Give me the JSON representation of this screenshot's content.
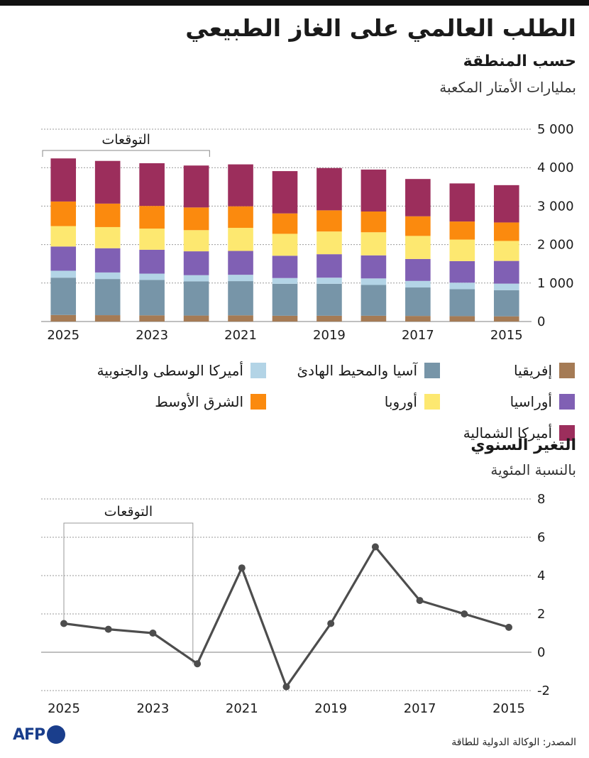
{
  "title": "الطلب العالمي على الغاز الطبيعي",
  "chart1": {
    "subtitle": "حسب المنطقة",
    "unit": "بمليارات الأمتار المكعبة",
    "forecast_label": "التوقعات"
  },
  "chart2": {
    "subtitle": "التغير السنوي",
    "unit": "بالنسبة المئوية",
    "forecast_label": "التوقعات"
  },
  "source": "المصدر: الوكالة الدولية للطاقة",
  "logo_text": "AFP",
  "colors": {
    "africa": "#a57b55",
    "asia_pacific": "#7795a8",
    "central_south_america": "#b3d4e6",
    "eurasia": "#8060b4",
    "europe": "#fde870",
    "middle_east": "#fb8a0e",
    "north_america": "#9c2e5c",
    "line": "#4d4d4d",
    "grid": "#999999"
  },
  "chart_data": [
    {
      "type": "bar",
      "stacked": true,
      "x": [
        2025,
        2024,
        2023,
        2022,
        2021,
        2020,
        2019,
        2018,
        2017,
        2016,
        2015
      ],
      "x_tick_labels": [
        "2025",
        "2023",
        "2021",
        "2019",
        "2017",
        "2015"
      ],
      "y_ticks": [
        0,
        1000,
        2000,
        3000,
        4000,
        5000
      ],
      "y_tick_labels": [
        "0",
        "1 000",
        "2 000",
        "3 000",
        "4 000",
        "5 000"
      ],
      "ylim": [
        0,
        5000
      ],
      "legend_position": "bottom",
      "series": [
        {
          "name": "إفريقيا",
          "key": "africa",
          "values": [
            170,
            165,
            160,
            155,
            160,
            150,
            150,
            150,
            145,
            140,
            135
          ]
        },
        {
          "name": "آسيا والمحيط الهادئ",
          "key": "asia_pacific",
          "values": [
            970,
            940,
            920,
            890,
            890,
            830,
            830,
            800,
            740,
            700,
            680
          ]
        },
        {
          "name": "أميركا الوسطى والجنوبية",
          "key": "central_south_america",
          "values": [
            180,
            170,
            165,
            160,
            165,
            150,
            160,
            170,
            170,
            170,
            170
          ]
        },
        {
          "name": "أوراسيا",
          "key": "eurasia",
          "values": [
            630,
            630,
            620,
            620,
            620,
            580,
            610,
            600,
            570,
            560,
            590
          ]
        },
        {
          "name": "أوروبا",
          "key": "europe",
          "values": [
            530,
            550,
            550,
            550,
            600,
            570,
            590,
            600,
            600,
            560,
            520
          ]
        },
        {
          "name": "الشرق الأوسط",
          "key": "middle_east",
          "values": [
            640,
            610,
            590,
            590,
            560,
            530,
            550,
            540,
            510,
            470,
            480
          ]
        },
        {
          "name": "أميركا الشمالية",
          "key": "north_america",
          "values": [
            1120,
            1110,
            1110,
            1090,
            1090,
            1100,
            1100,
            1090,
            970,
            990,
            970
          ]
        }
      ]
    },
    {
      "type": "line",
      "x": [
        2025,
        2024,
        2023,
        2022,
        2021,
        2020,
        2019,
        2018,
        2017,
        2016,
        2015
      ],
      "x_tick_labels": [
        "2025",
        "2023",
        "2021",
        "2019",
        "2017",
        "2015"
      ],
      "y_ticks": [
        -2,
        0,
        2,
        4,
        6,
        8
      ],
      "y_tick_labels": [
        "-2",
        "0",
        "2",
        "4",
        "6",
        "8"
      ],
      "ylim": [
        -2,
        8
      ],
      "series": [
        {
          "values": [
            1.5,
            1.2,
            1.0,
            -0.6,
            4.4,
            -1.8,
            1.5,
            5.5,
            2.7,
            2.0,
            1.3
          ]
        }
      ]
    }
  ]
}
